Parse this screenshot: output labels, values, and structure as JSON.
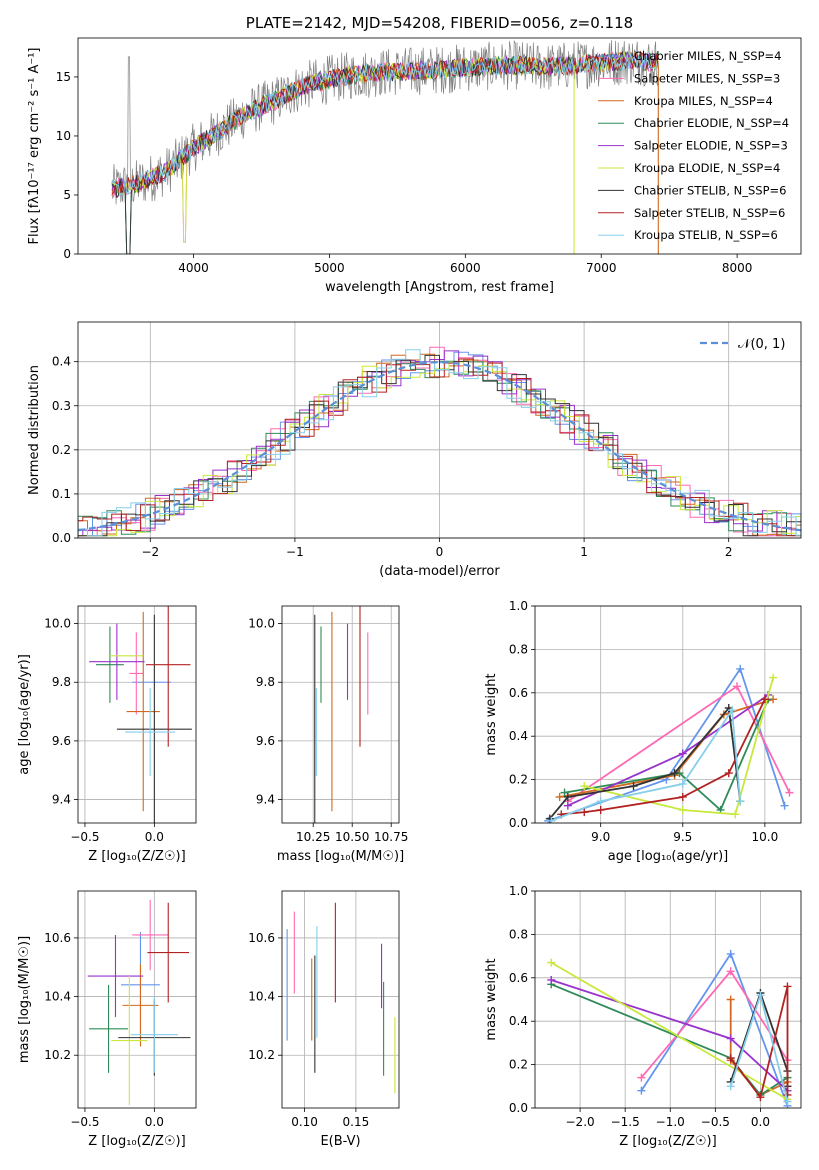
{
  "chart_data": [
    {
      "id": "spectrum",
      "type": "line",
      "title": "PLATE=2142, MJD=54208, FIBERID=0056, z=0.118",
      "xlabel": "wavelength [Angstrom, rest frame]",
      "ylabel": "Flux [fλ10⁻¹⁷ erg cm⁻² s⁻¹ A⁻¹]",
      "xlim": [
        3150,
        8470
      ],
      "ylim": [
        0,
        18.3
      ],
      "xticks": [
        4000,
        5000,
        6000,
        7000,
        8000
      ],
      "yticks": [
        0,
        5,
        10,
        15
      ],
      "grid": false,
      "legend_position": "right",
      "legend": [
        {
          "label": "Chabrier MILES, N_SSP=4",
          "color": "#6495ed"
        },
        {
          "label": "Salpeter MILES, N_SSP=3",
          "color": "#ff69b4"
        },
        {
          "label": "Kroupa MILES, N_SSP=4",
          "color": "#d2691e"
        },
        {
          "label": "Chabrier ELODIE, N_SSP=4",
          "color": "#2e8b57"
        },
        {
          "label": "Salpeter ELODIE, N_SSP=3",
          "color": "#9932cc"
        },
        {
          "label": "Kroupa ELODIE, N_SSP=4",
          "color": "#c8e83c"
        },
        {
          "label": "Chabrier STELIB, N_SSP=6",
          "color": "#333333"
        },
        {
          "label": "Salpeter STELIB, N_SSP=6",
          "color": "#b22222"
        },
        {
          "label": "Kroupa STELIB, N_SSP=6",
          "color": "#87ceeb"
        }
      ],
      "data_color": "#808080",
      "continuum": {
        "x": [
          3400,
          3600,
          3800,
          4000,
          4200,
          4400,
          4600,
          4800,
          5000,
          5200,
          5400,
          5600,
          5800,
          6000,
          6200,
          6400,
          6600,
          6800,
          7000,
          7200,
          7500
        ],
        "y": [
          5.5,
          6.0,
          7.0,
          9.0,
          10.5,
          12.0,
          13.0,
          14.2,
          14.8,
          15.2,
          15.4,
          15.5,
          15.6,
          15.8,
          15.9,
          16.0,
          15.8,
          16.0,
          16.2,
          16.4,
          16.2
        ]
      }
    },
    {
      "id": "residuals",
      "type": "line",
      "xlabel": "(data-model)/error",
      "ylabel": "Normed distribution",
      "xlim": [
        -2.5,
        2.5
      ],
      "ylim": [
        0,
        0.49
      ],
      "xticks": [
        -2,
        -1,
        0,
        1,
        2
      ],
      "yticks": [
        0.0,
        0.1,
        0.2,
        0.3,
        0.4
      ],
      "grid": true,
      "legend_position": "top-right",
      "legend": [
        {
          "label": "𝒩(0, 1)",
          "color": "#5b8fd8"
        }
      ]
    },
    {
      "id": "age_vs_Z",
      "type": "scatter",
      "xlabel": "Z [log₁₀(Z/Z☉)]",
      "ylabel": "age  [log₁₀(age/yr)]",
      "xlim": [
        -0.55,
        0.3
      ],
      "ylim": [
        9.32,
        10.06
      ],
      "xticks": [
        -0.5,
        0.0
      ],
      "yticks": [
        9.4,
        9.6,
        9.8,
        10.0
      ],
      "grid": true,
      "series": [
        {
          "x": -0.02,
          "xerr": 0.14,
          "y": 9.8,
          "yerr": 0.0
        },
        {
          "x": -0.13,
          "xerr": 0.05,
          "y": 9.83,
          "yerr": 0.14
        },
        {
          "x": -0.08,
          "xerr": 0.12,
          "y": 9.7,
          "yerr": 0.34
        },
        {
          "x": -0.32,
          "xerr": 0.1,
          "y": 9.86,
          "yerr": 0.13
        },
        {
          "x": -0.27,
          "xerr": 0.2,
          "y": 9.87,
          "yerr": 0.13
        },
        {
          "x": -0.2,
          "xerr": 0.12,
          "y": 9.89,
          "yerr": 0.0
        },
        {
          "x": 0.0,
          "xerr": 0.27,
          "y": 9.64,
          "yerr": 0.39
        },
        {
          "x": 0.1,
          "xerr": 0.16,
          "y": 9.86,
          "yerr": 0.28
        },
        {
          "x": -0.03,
          "xerr": 0.18,
          "y": 9.63,
          "yerr": 0.15
        }
      ]
    },
    {
      "id": "age_vs_mass",
      "type": "scatter",
      "xlabel": "mass [log₁₀(M/M☉)]",
      "xlim": [
        10.05,
        10.8
      ],
      "ylim": [
        9.32,
        10.06
      ],
      "xticks": [
        10.25,
        10.5,
        10.75
      ],
      "yticks": [
        9.4,
        9.6,
        9.8,
        10.0
      ],
      "grid": true,
      "series": [
        {
          "x": 10.44,
          "xerr": 0.0,
          "y": 9.8,
          "yerr": 0.0
        },
        {
          "x": 10.6,
          "xerr": 0.0,
          "y": 9.83,
          "yerr": 0.14
        },
        {
          "x": 10.37,
          "xerr": 0.0,
          "y": 9.7,
          "yerr": 0.34
        },
        {
          "x": 10.3,
          "xerr": 0.0,
          "y": 9.86,
          "yerr": 0.13
        },
        {
          "x": 10.47,
          "xerr": 0.0,
          "y": 9.87,
          "yerr": 0.13
        },
        {
          "x": 10.25,
          "xerr": 0.0,
          "y": 9.89,
          "yerr": 0.0
        },
        {
          "x": 10.26,
          "xerr": 0.0,
          "y": 9.64,
          "yerr": 0.39
        },
        {
          "x": 10.55,
          "xerr": 0.0,
          "y": 9.86,
          "yerr": 0.28
        },
        {
          "x": 10.27,
          "xerr": 0.0,
          "y": 9.63,
          "yerr": 0.15
        }
      ]
    },
    {
      "id": "mass_weight_vs_age",
      "type": "line",
      "xlabel": "age  [log₁₀(age/yr)]",
      "ylabel": "mass weight",
      "xlim": [
        8.6,
        10.22
      ],
      "ylim": [
        0.0,
        1.0
      ],
      "xticks": [
        9.0,
        9.5,
        10.0
      ],
      "yticks": [
        0.0,
        0.2,
        0.4,
        0.6,
        0.8,
        1.0
      ],
      "grid": true,
      "series": [
        {
          "color": "#6495ed",
          "x": [
            8.68,
            9.4,
            9.85,
            10.12
          ],
          "y": [
            0.01,
            0.2,
            0.71,
            0.08
          ]
        },
        {
          "color": "#ff69b4",
          "x": [
            8.8,
            9.83,
            10.15
          ],
          "y": [
            0.1,
            0.63,
            0.14
          ]
        },
        {
          "color": "#d2691e",
          "x": [
            8.75,
            9.45,
            9.75,
            10.05
          ],
          "y": [
            0.12,
            0.22,
            0.5,
            0.57
          ]
        },
        {
          "color": "#2e8b57",
          "x": [
            8.78,
            9.48,
            9.73,
            10.02
          ],
          "y": [
            0.14,
            0.23,
            0.06,
            0.57
          ]
        },
        {
          "color": "#9932cc",
          "x": [
            8.8,
            9.5,
            10.02
          ],
          "y": [
            0.08,
            0.32,
            0.59
          ]
        },
        {
          "color": "#c8e83c",
          "x": [
            8.9,
            9.5,
            9.82,
            10.05
          ],
          "y": [
            0.17,
            0.06,
            0.04,
            0.67
          ]
        },
        {
          "color": "#333333",
          "x": [
            8.69,
            8.8,
            9.2,
            9.45,
            9.78,
            9.85
          ],
          "y": [
            0.02,
            0.12,
            0.17,
            0.23,
            0.53,
            0.1
          ]
        },
        {
          "color": "#b22222",
          "x": [
            8.76,
            8.9,
            9.0,
            9.5,
            9.78,
            10.0
          ],
          "y": [
            0.04,
            0.05,
            0.06,
            0.12,
            0.23,
            0.57
          ]
        },
        {
          "color": "#87ceeb",
          "x": [
            8.7,
            9.0,
            9.5,
            9.8,
            9.85
          ],
          "y": [
            0.01,
            0.1,
            0.18,
            0.52,
            0.1
          ]
        }
      ]
    },
    {
      "id": "mass_vs_Z",
      "type": "scatter",
      "xlabel": "Z [log₁₀(Z/Z☉)]",
      "ylabel": "mass [log₁₀(M/M☉)]",
      "xlim": [
        -0.55,
        0.3
      ],
      "ylim": [
        10.02,
        10.76
      ],
      "xticks": [
        -0.5,
        0.0
      ],
      "yticks": [
        10.2,
        10.4,
        10.6
      ],
      "grid": true,
      "series": [
        {
          "x": -0.1,
          "xerr": 0.14,
          "y": 10.44,
          "yerr": 0.18
        },
        {
          "x": -0.03,
          "xerr": 0.13,
          "y": 10.61,
          "yerr": 0.12
        },
        {
          "x": -0.1,
          "xerr": 0.13,
          "y": 10.37,
          "yerr": 0.14
        },
        {
          "x": -0.33,
          "xerr": 0.14,
          "y": 10.29,
          "yerr": 0.15
        },
        {
          "x": -0.28,
          "xerr": 0.2,
          "y": 10.47,
          "yerr": 0.14
        },
        {
          "x": -0.18,
          "xerr": 0.13,
          "y": 10.25,
          "yerr": 0.22
        },
        {
          "x": 0.0,
          "xerr": 0.26,
          "y": 10.26,
          "yerr": 0.13
        },
        {
          "x": 0.1,
          "xerr": 0.15,
          "y": 10.55,
          "yerr": 0.17
        },
        {
          "x": 0.0,
          "xerr": 0.17,
          "y": 10.27,
          "yerr": 0.13
        }
      ]
    },
    {
      "id": "mass_vs_ebv",
      "type": "scatter",
      "xlabel": "E(B-V)",
      "xlim": [
        0.078,
        0.192
      ],
      "ylim": [
        10.02,
        10.76
      ],
      "xticks": [
        0.1,
        0.15
      ],
      "yticks": [
        10.2,
        10.4,
        10.6
      ],
      "grid": true,
      "series": [
        {
          "x": 0.083,
          "y": 10.44,
          "yerr": 0.19
        },
        {
          "x": 0.09,
          "y": 10.55,
          "yerr": 0.14
        },
        {
          "x": 0.107,
          "y": 10.39,
          "yerr": 0.14
        },
        {
          "x": 0.177,
          "y": 10.29,
          "yerr": 0.16
        },
        {
          "x": 0.175,
          "y": 10.47,
          "yerr": 0.11
        },
        {
          "x": 0.188,
          "y": 10.2,
          "yerr": 0.13
        },
        {
          "x": 0.11,
          "y": 10.34,
          "yerr": 0.2
        },
        {
          "x": 0.13,
          "y": 10.55,
          "yerr": 0.17
        },
        {
          "x": 0.112,
          "y": 10.45,
          "yerr": 0.19
        }
      ]
    },
    {
      "id": "mass_weight_vs_Z",
      "type": "line",
      "xlabel": "Z [log₁₀(Z/Z☉)]",
      "ylabel": "mass weight",
      "xlim": [
        -2.5,
        0.45
      ],
      "ylim": [
        0.0,
        1.0
      ],
      "xticks": [
        -2.0,
        -1.5,
        -1.0,
        -0.5,
        0.0
      ],
      "yticks": [
        0.0,
        0.2,
        0.4,
        0.6,
        0.8,
        1.0
      ],
      "grid": true,
      "series": [
        {
          "color": "#6495ed",
          "x": [
            -1.32,
            -0.33,
            0.3
          ],
          "y": [
            0.08,
            0.71,
            0.01
          ]
        },
        {
          "color": "#ff69b4",
          "x": [
            -1.32,
            -0.33,
            0.3
          ],
          "y": [
            0.14,
            0.63,
            0.22
          ]
        },
        {
          "color": "#d2691e",
          "x": [
            -0.33,
            -0.33,
            0.0,
            0.3
          ],
          "y": [
            0.5,
            0.22,
            0.06,
            0.12
          ]
        },
        {
          "color": "#2e8b57",
          "x": [
            -2.32,
            -0.33,
            0.0,
            0.3
          ],
          "y": [
            0.57,
            0.23,
            0.06,
            0.14
          ]
        },
        {
          "color": "#9932cc",
          "x": [
            -2.32,
            -0.33,
            0.3
          ],
          "y": [
            0.59,
            0.32,
            0.08
          ]
        },
        {
          "color": "#c8e83c",
          "x": [
            -2.32,
            0.3
          ],
          "y": [
            0.67,
            0.04
          ]
        },
        {
          "color": "#333333",
          "x": [
            -0.33,
            0.0,
            0.3,
            0.3
          ],
          "y": [
            0.12,
            0.53,
            0.17,
            0.1
          ]
        },
        {
          "color": "#b22222",
          "x": [
            -0.33,
            0.0,
            0.3,
            0.3
          ],
          "y": [
            0.23,
            0.05,
            0.56,
            0.06
          ]
        },
        {
          "color": "#87ceeb",
          "x": [
            -0.33,
            0.0,
            0.3
          ],
          "y": [
            0.1,
            0.52,
            0.03
          ]
        }
      ]
    }
  ]
}
